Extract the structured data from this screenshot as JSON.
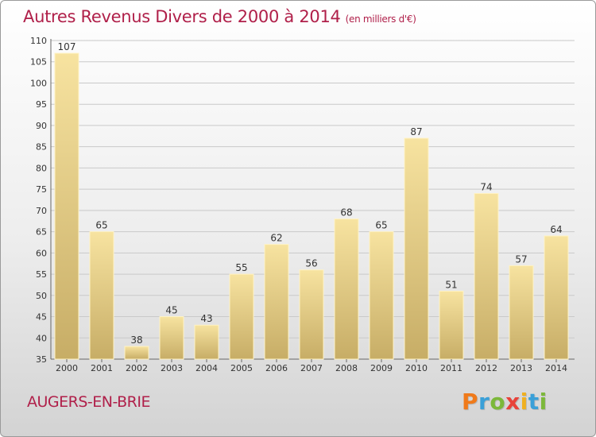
{
  "header": {
    "title": "Autres Revenus Divers de 2000 à 2014",
    "subtitle": "(en milliers d'€)"
  },
  "footer": {
    "commune": "AUGERS-EN-BRIE",
    "logo_text": "Proxiti"
  },
  "colors": {
    "title": "#b0204a",
    "bar_light": "#f7e3a0",
    "bar_dark": "#c7ad66",
    "logo_letters": [
      "#f07a1a",
      "#3aa0d8",
      "#7cb83a",
      "#e8423a",
      "#f0b020",
      "#3aa0d8",
      "#7cb83a"
    ]
  },
  "chart_data": {
    "type": "bar",
    "categories": [
      "2000",
      "2001",
      "2002",
      "2003",
      "2004",
      "2005",
      "2006",
      "2007",
      "2008",
      "2009",
      "2010",
      "2011",
      "2012",
      "2013",
      "2014"
    ],
    "values": [
      107,
      65,
      38,
      45,
      43,
      55,
      62,
      56,
      68,
      65,
      87,
      51,
      74,
      57,
      64
    ],
    "title": "Autres Revenus Divers de 2000 à 2014",
    "subtitle": "(en milliers d'€)",
    "xlabel": "",
    "ylabel": "",
    "ylim": [
      35,
      110
    ],
    "yticks": [
      35,
      40,
      45,
      50,
      55,
      60,
      65,
      70,
      75,
      80,
      85,
      90,
      95,
      100,
      105,
      110
    ],
    "grid": true,
    "data_labels": true
  }
}
